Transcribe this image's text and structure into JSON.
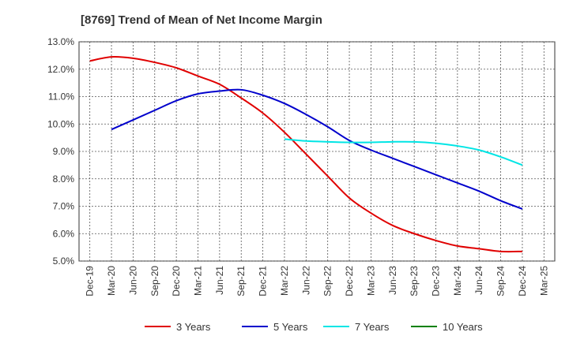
{
  "chart_data": {
    "type": "line",
    "title": "[8769]  Trend of Mean of Net Income Margin",
    "xlabel": "",
    "ylabel": "",
    "x": [
      "Dec-19",
      "Mar-20",
      "Jun-20",
      "Sep-20",
      "Dec-20",
      "Mar-21",
      "Jun-21",
      "Sep-21",
      "Dec-21",
      "Mar-22",
      "Jun-22",
      "Sep-22",
      "Dec-22",
      "Mar-23",
      "Jun-23",
      "Sep-23",
      "Dec-23",
      "Mar-24",
      "Jun-24",
      "Sep-24",
      "Dec-24",
      "Mar-25"
    ],
    "ylim": [
      5.0,
      13.0
    ],
    "yticks": [
      "5.0%",
      "6.0%",
      "7.0%",
      "8.0%",
      "9.0%",
      "10.0%",
      "11.0%",
      "12.0%",
      "13.0%"
    ],
    "grid": true,
    "legend_position": "bottom",
    "series": [
      {
        "name": "3 Years",
        "color": "#e00000",
        "values": [
          12.3,
          12.45,
          12.4,
          12.25,
          12.05,
          11.75,
          11.45,
          10.95,
          10.4,
          9.7,
          8.9,
          8.1,
          7.3,
          6.75,
          6.3,
          6.0,
          5.75,
          5.55,
          5.45,
          5.35,
          5.35,
          null
        ]
      },
      {
        "name": "5 Years",
        "color": "#0000cc",
        "values": [
          null,
          9.8,
          10.15,
          10.5,
          10.85,
          11.1,
          11.2,
          11.25,
          11.05,
          10.75,
          10.35,
          9.9,
          9.4,
          9.05,
          8.75,
          8.45,
          8.15,
          7.85,
          7.55,
          7.2,
          6.9,
          null
        ]
      },
      {
        "name": "7 Years",
        "color": "#00e5e5",
        "values": [
          null,
          null,
          null,
          null,
          null,
          null,
          null,
          null,
          null,
          9.45,
          9.38,
          9.35,
          9.33,
          9.33,
          9.35,
          9.35,
          9.3,
          9.2,
          9.05,
          8.8,
          8.5,
          null
        ]
      },
      {
        "name": "10 Years",
        "color": "#008000",
        "values": [
          null,
          null,
          null,
          null,
          null,
          null,
          null,
          null,
          null,
          null,
          null,
          null,
          null,
          null,
          null,
          null,
          null,
          null,
          null,
          null,
          null,
          null
        ]
      }
    ]
  }
}
